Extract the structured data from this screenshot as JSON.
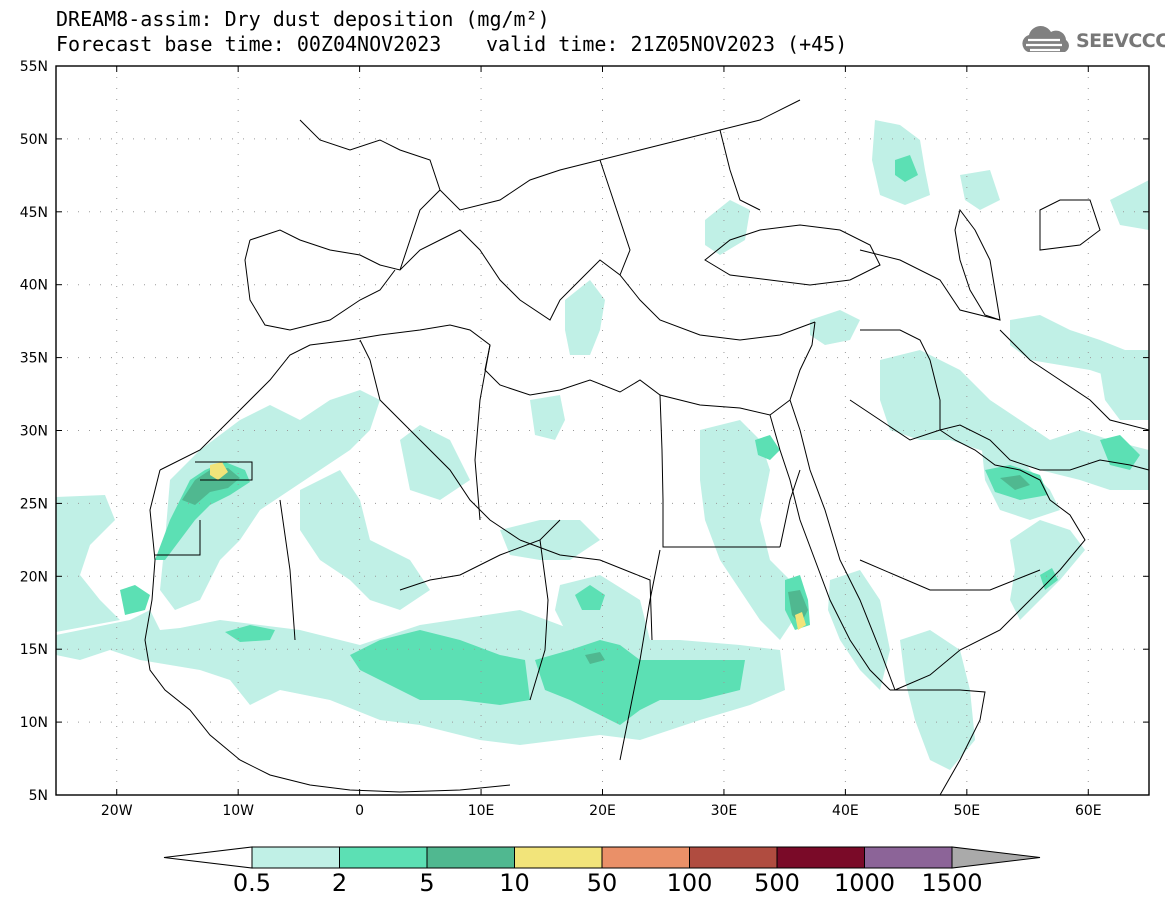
{
  "header": {
    "title": "DREAM8-assim: Dry dust deposition (mg/m²)",
    "base_time": "Forecast base time: 00Z04NOV2023",
    "valid_time": "valid time: 21Z05NOV2023 (+45)",
    "logo_text": "SEEVCCC"
  },
  "map": {
    "lon_range": [
      -25,
      65
    ],
    "lat_range": [
      5,
      55
    ],
    "lon_ticks": [
      {
        "value": -20,
        "label": "20W"
      },
      {
        "value": -10,
        "label": "10W"
      },
      {
        "value": 0,
        "label": "0"
      },
      {
        "value": 10,
        "label": "10E"
      },
      {
        "value": 20,
        "label": "20E"
      },
      {
        "value": 30,
        "label": "30E"
      },
      {
        "value": 40,
        "label": "40E"
      },
      {
        "value": 50,
        "label": "50E"
      },
      {
        "value": 60,
        "label": "60E"
      }
    ],
    "lat_ticks": [
      {
        "value": 55,
        "label": "55N"
      },
      {
        "value": 50,
        "label": "50N"
      },
      {
        "value": 45,
        "label": "45N"
      },
      {
        "value": 40,
        "label": "40N"
      },
      {
        "value": 35,
        "label": "35N"
      },
      {
        "value": 30,
        "label": "30N"
      },
      {
        "value": 25,
        "label": "25N"
      },
      {
        "value": 20,
        "label": "20N"
      },
      {
        "value": 15,
        "label": "15N"
      },
      {
        "value": 10,
        "label": "10N"
      },
      {
        "value": 5,
        "label": "5N"
      }
    ],
    "gridlines": "dotted"
  },
  "colorbar": {
    "levels": [
      "0.5",
      "2",
      "5",
      "10",
      "50",
      "100",
      "500",
      "1000",
      "1500"
    ],
    "colors": [
      "#c0f0e6",
      "#5ce0b4",
      "#50b890",
      "#f2e47a",
      "#ea9068",
      "#b04c40",
      "#7a0a28",
      "#8c6498",
      "#aaaaaa"
    ],
    "under_color": "#ffffff"
  }
}
